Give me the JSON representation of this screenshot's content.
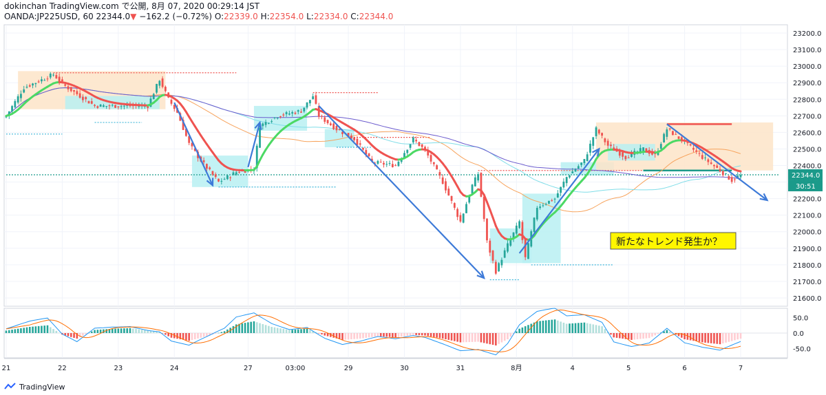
{
  "header": {
    "publisher": "dokinchan TradingView.com で公開, 8月 07, 2020 00:29:14 JST",
    "symbol": "OANDA:JP225USD, 60",
    "price": "22344.0",
    "change_arrow": "▼",
    "change": "−162.2 (−0.72%)",
    "o_label": "O:",
    "o_value": "22339.0",
    "h_label": "H:",
    "h_value": "22354.0",
    "l_label": "L:",
    "l_value": "22334.0",
    "c_label": "C:",
    "c_value": "22344.0"
  },
  "colors": {
    "bull": "#26a69a",
    "bear": "#ef5350",
    "ema_fast_up": "#4cd964",
    "ema_fast_dn": "#ef5350",
    "ma_orange": "#f7a35c",
    "ma_cyan": "#7fdde8",
    "ma_purple": "#6a5acd",
    "arrow": "#3d7ad8",
    "zone_orange": "#fde4c8",
    "zone_cyan": "#b9f0f2",
    "annotation_bg": "#fff600",
    "price_badge": "#1b9a8a"
  },
  "annotation": {
    "text": "新たなトレンド発生か？"
  },
  "price_badge": {
    "price": "22344.0",
    "countdown": "30:51"
  },
  "footer": {
    "brand": "TradingView"
  },
  "chart_data": {
    "type": "candlestick",
    "instrument": "OANDA:JP225USD",
    "timeframe": "60",
    "ylim": [
      21550,
      23250
    ],
    "y_ticks": [
      21600,
      21700,
      21800,
      21900,
      22000,
      22100,
      22200,
      22300,
      22400,
      22500,
      22600,
      22700,
      22800,
      22900,
      23000,
      23100,
      23200
    ],
    "x_ticks": [
      {
        "label": "21",
        "bar": 0
      },
      {
        "label": "22",
        "bar": 19
      },
      {
        "label": "23",
        "bar": 38
      },
      {
        "label": "24",
        "bar": 57
      },
      {
        "label": "27",
        "bar": 82
      },
      {
        "label": "03:00",
        "bar": 98
      },
      {
        "label": "29",
        "bar": 116
      },
      {
        "label": "30",
        "bar": 135
      },
      {
        "label": "31",
        "bar": 154
      },
      {
        "label": "8月",
        "bar": 173
      },
      {
        "label": "4",
        "bar": 192
      },
      {
        "label": "5",
        "bar": 211
      },
      {
        "label": "6",
        "bar": 230
      },
      {
        "label": "7",
        "bar": 249
      }
    ],
    "price_path": [
      [
        0,
        22700
      ],
      [
        6,
        22870
      ],
      [
        16,
        22950
      ],
      [
        20,
        22880
      ],
      [
        30,
        22760
      ],
      [
        40,
        22760
      ],
      [
        48,
        22760
      ],
      [
        52,
        22920
      ],
      [
        55,
        22800
      ],
      [
        58,
        22720
      ],
      [
        62,
        22530
      ],
      [
        66,
        22430
      ],
      [
        72,
        22300
      ],
      [
        78,
        22360
      ],
      [
        84,
        22380
      ],
      [
        86,
        22640
      ],
      [
        92,
        22700
      ],
      [
        100,
        22730
      ],
      [
        104,
        22820
      ],
      [
        106,
        22700
      ],
      [
        112,
        22620
      ],
      [
        118,
        22560
      ],
      [
        124,
        22420
      ],
      [
        132,
        22400
      ],
      [
        138,
        22560
      ],
      [
        142,
        22490
      ],
      [
        148,
        22300
      ],
      [
        154,
        22060
      ],
      [
        158,
        22280
      ],
      [
        160,
        22350
      ],
      [
        163,
        21940
      ],
      [
        166,
        21760
      ],
      [
        170,
        21920
      ],
      [
        174,
        22060
      ],
      [
        176,
        21840
      ],
      [
        180,
        22150
      ],
      [
        186,
        22200
      ],
      [
        190,
        22330
      ],
      [
        196,
        22430
      ],
      [
        200,
        22620
      ],
      [
        204,
        22520
      ],
      [
        210,
        22450
      ],
      [
        216,
        22500
      ],
      [
        220,
        22460
      ],
      [
        224,
        22620
      ],
      [
        230,
        22540
      ],
      [
        236,
        22450
      ],
      [
        242,
        22370
      ],
      [
        246,
        22310
      ],
      [
        249,
        22344
      ]
    ],
    "candle_count": 250,
    "last": {
      "open": 22339.0,
      "high": 22354.0,
      "low": 22334.0,
      "close": 22344.0,
      "change": -162.2,
      "change_pct": -0.72
    },
    "macd_pane": {
      "y_ticks": [
        50.0,
        0.0,
        -50.0
      ],
      "ylim": [
        -80,
        80
      ],
      "histogram_path": [
        [
          0,
          8
        ],
        [
          8,
          20
        ],
        [
          14,
          25
        ],
        [
          19,
          -5
        ],
        [
          24,
          -18
        ],
        [
          30,
          10
        ],
        [
          36,
          14
        ],
        [
          42,
          16
        ],
        [
          48,
          8
        ],
        [
          52,
          4
        ],
        [
          56,
          -15
        ],
        [
          62,
          -25
        ],
        [
          68,
          -10
        ],
        [
          74,
          6
        ],
        [
          78,
          28
        ],
        [
          84,
          38
        ],
        [
          90,
          20
        ],
        [
          96,
          10
        ],
        [
          102,
          14
        ],
        [
          108,
          -8
        ],
        [
          114,
          -22
        ],
        [
          120,
          -18
        ],
        [
          126,
          -10
        ],
        [
          132,
          -14
        ],
        [
          138,
          -6
        ],
        [
          142,
          -8
        ],
        [
          148,
          -18
        ],
        [
          154,
          -30
        ],
        [
          160,
          -28
        ],
        [
          166,
          -40
        ],
        [
          170,
          -20
        ],
        [
          174,
          14
        ],
        [
          180,
          38
        ],
        [
          186,
          44
        ],
        [
          190,
          30
        ],
        [
          196,
          34
        ],
        [
          202,
          22
        ],
        [
          206,
          -14
        ],
        [
          212,
          -22
        ],
        [
          218,
          -16
        ],
        [
          224,
          10
        ],
        [
          230,
          -20
        ],
        [
          236,
          -30
        ],
        [
          242,
          -36
        ],
        [
          249,
          -18
        ]
      ]
    },
    "horizontal_levels": [
      {
        "price": 22960,
        "from_bar": 16,
        "to_bar": 78,
        "color": "#ef5350"
      },
      {
        "price": 22840,
        "from_bar": 104,
        "to_bar": 126,
        "color": "#ef5350"
      },
      {
        "price": 22570,
        "from_bar": 116,
        "to_bar": 144,
        "color": "#ef5350"
      },
      {
        "price": 22370,
        "from_bar": 160,
        "to_bar": 240,
        "color": "#ef5350"
      },
      {
        "price": 22650,
        "from_bar": 224,
        "to_bar": 246,
        "color": "#ef5350",
        "solid": true
      },
      {
        "price": 22590,
        "from_bar": 0,
        "to_bar": 19,
        "color": "#3fb6d9"
      },
      {
        "price": 22660,
        "from_bar": 30,
        "to_bar": 46,
        "color": "#3fb6d9"
      },
      {
        "price": 22270,
        "from_bar": 72,
        "to_bar": 112,
        "color": "#3fb6d9"
      },
      {
        "price": 22510,
        "from_bar": 112,
        "to_bar": 124,
        "color": "#3fb6d9"
      },
      {
        "price": 21710,
        "from_bar": 164,
        "to_bar": 174,
        "color": "#3fb6d9"
      },
      {
        "price": 21800,
        "from_bar": 178,
        "to_bar": 206,
        "color": "#3fb6d9"
      },
      {
        "price": 22370,
        "from_bar": 216,
        "to_bar": 246,
        "color": "#1b9a8a",
        "solid": true
      },
      {
        "price": 22344,
        "from_bar": 0,
        "to_bar": 262,
        "color": "#1b9a8a"
      }
    ],
    "zones": [
      {
        "kind": "orange",
        "from_bar": 4,
        "to_bar": 54,
        "top": 22970,
        "bottom": 22740
      },
      {
        "kind": "cyan",
        "from_bar": 20,
        "to_bar": 52,
        "top": 22820,
        "bottom": 22740
      },
      {
        "kind": "cyan",
        "from_bar": 63,
        "to_bar": 82,
        "top": 22460,
        "bottom": 22270
      },
      {
        "kind": "cyan",
        "from_bar": 84,
        "to_bar": 102,
        "top": 22760,
        "bottom": 22610
      },
      {
        "kind": "cyan",
        "from_bar": 108,
        "to_bar": 118,
        "top": 22620,
        "bottom": 22510
      },
      {
        "kind": "cyan",
        "from_bar": 164,
        "to_bar": 178,
        "top": 22020,
        "bottom": 21810
      },
      {
        "kind": "cyan",
        "from_bar": 175,
        "to_bar": 188,
        "top": 22230,
        "bottom": 21810
      },
      {
        "kind": "cyan",
        "from_bar": 188,
        "to_bar": 206,
        "top": 22420,
        "bottom": 22340
      },
      {
        "kind": "orange",
        "from_bar": 200,
        "to_bar": 260,
        "top": 22660,
        "bottom": 22370
      },
      {
        "kind": "cyan",
        "from_bar": 204,
        "to_bar": 220,
        "top": 22530,
        "bottom": 22430
      }
    ],
    "trend_arrows": [
      {
        "from": [
          57,
          22780
        ],
        "to": [
          70,
          22280
        ]
      },
      {
        "from": [
          82,
          22390
        ],
        "to": [
          86,
          22660
        ]
      },
      {
        "from": [
          106,
          22760
        ],
        "to": [
          162,
          21720
        ]
      },
      {
        "from": [
          174,
          21870
        ],
        "to": [
          201,
          22500
        ]
      },
      {
        "from": [
          224,
          22650
        ],
        "to": [
          258,
          22190
        ]
      }
    ]
  }
}
